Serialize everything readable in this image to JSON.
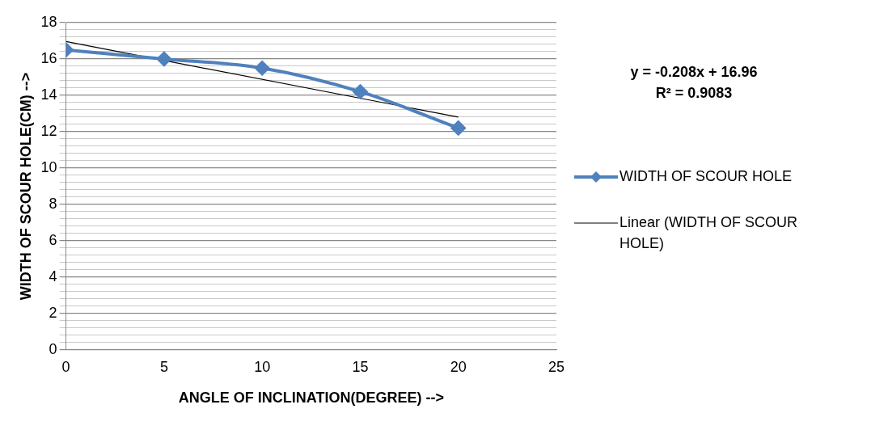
{
  "chart_data": {
    "type": "line",
    "xlabel": "ANGLE OF INCLINATION(DEGREE) -->",
    "ylabel": "WIDTH OF SCOUR HOLE(CM) -->",
    "x": [
      0,
      5,
      10,
      15,
      20
    ],
    "series": [
      {
        "name": "WIDTH OF SCOUR HOLE",
        "color": "#4f81bd",
        "values": [
          16.5,
          16.0,
          15.5,
          14.2,
          12.2
        ],
        "marker": "diamond"
      },
      {
        "name": "Linear (WIDTH OF SCOUR HOLE)",
        "type": "line",
        "color": "#000000",
        "x": [
          0,
          20
        ],
        "values": [
          16.96,
          12.8
        ],
        "marker": "none"
      }
    ],
    "xlim": [
      0,
      25
    ],
    "xticks": [
      0,
      5,
      10,
      15,
      20,
      25
    ],
    "ylim": [
      0,
      18
    ],
    "yticks": [
      0,
      {
        "value": 0.4,
        "label": null
      },
      {
        "value": 0.8,
        "label": null
      },
      {
        "value": 1.2,
        "label": null
      },
      {
        "value": 1.6,
        "label": null
      },
      2,
      {
        "value": 2.4,
        "label": null
      },
      {
        "value": 2.8,
        "label": null
      },
      {
        "value": 3.2,
        "label": null
      },
      {
        "value": 3.6,
        "label": null
      },
      4,
      {
        "value": 4.4,
        "label": null
      },
      {
        "value": 4.8,
        "label": null
      },
      {
        "value": 5.2,
        "label": null
      },
      {
        "value": 5.6,
        "label": null
      },
      6,
      {
        "value": 6.4,
        "label": null
      },
      {
        "value": 6.8,
        "label": null
      },
      {
        "value": 7.2,
        "label": null
      },
      {
        "value": 7.6,
        "label": null
      },
      8,
      {
        "value": 8.4,
        "label": null
      },
      {
        "value": 8.8,
        "label": null
      },
      {
        "value": 9.2,
        "label": null
      },
      {
        "value": 9.6,
        "label": null
      },
      10,
      {
        "value": 10.4,
        "label": null
      },
      {
        "value": 10.8,
        "label": null
      },
      {
        "value": 11.2,
        "label": null
      },
      {
        "value": 11.6,
        "label": null
      },
      12,
      {
        "value": 12.4,
        "label": null
      },
      {
        "value": 12.8,
        "label": null
      },
      {
        "value": 13.2,
        "label": null
      },
      {
        "value": 13.6,
        "label": null
      },
      14,
      {
        "value": 14.4,
        "label": null
      },
      {
        "value": 14.8,
        "label": null
      },
      {
        "value": 15.2,
        "label": null
      },
      {
        "value": 15.6,
        "label": null
      },
      16,
      {
        "value": 16.4,
        "label": null
      },
      {
        "value": 16.8,
        "label": null
      },
      {
        "value": 17.2,
        "label": null
      },
      {
        "value": 17.6,
        "label": null
      },
      18
    ],
    "grid": "y",
    "legend": "right",
    "annotations": [
      "y = -0.208x + 16.96",
      "R² = 0.9083"
    ]
  }
}
